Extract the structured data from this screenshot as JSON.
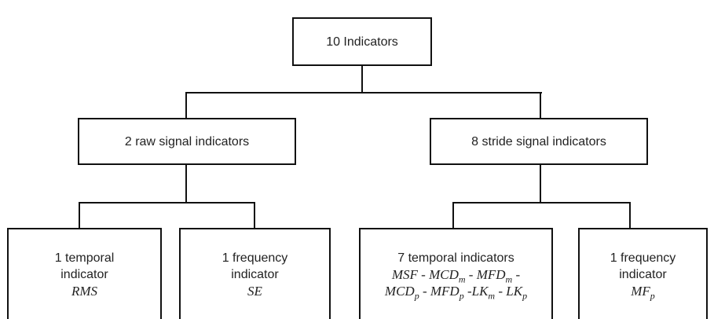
{
  "nodes": [
    {
      "label": "10 Indicators"
    },
    {
      "label": "2 raw signal indicators"
    },
    {
      "label": "8 stride signal indicators"
    },
    {
      "lines": [
        "1 temporal",
        "indicator"
      ],
      "math": [
        [
          {
            "t": "RMS"
          }
        ]
      ]
    },
    {
      "lines": [
        "1 frequency",
        "indicator"
      ],
      "math": [
        [
          {
            "t": "SE"
          }
        ]
      ]
    },
    {
      "lines": [
        "7 temporal indicators"
      ],
      "math": [
        [
          {
            "t": "MSF"
          },
          {
            "t": " - "
          },
          {
            "t": "MCD",
            "sub": "m"
          },
          {
            "t": " - "
          },
          {
            "t": "MFD",
            "sub": "m"
          },
          {
            "t": " -"
          }
        ],
        [
          {
            "t": "MCD",
            "sub": "p"
          },
          {
            "t": " - "
          },
          {
            "t": "MFD",
            "sub": "p"
          },
          {
            "t": " -"
          },
          {
            "t": "LK",
            "sub": "m"
          },
          {
            "t": " - "
          },
          {
            "t": "LK",
            "sub": "p"
          }
        ]
      ]
    },
    {
      "lines": [
        "1 frequency",
        "indicator"
      ],
      "math": [
        [
          {
            "t": "MF",
            "sub": "p"
          }
        ]
      ]
    }
  ]
}
